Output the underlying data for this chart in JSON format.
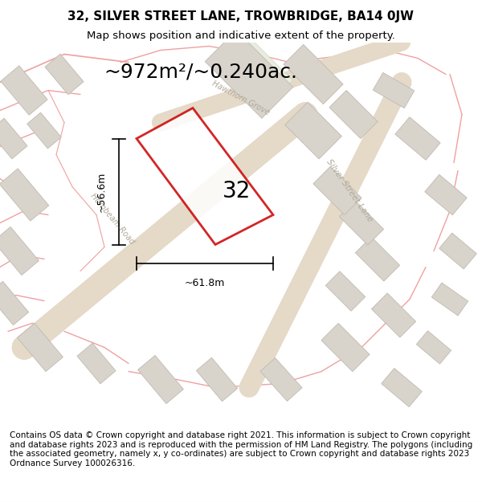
{
  "title": "32, SILVER STREET LANE, TROWBRIDGE, BA14 0JW",
  "subtitle": "Map shows position and indicative extent of the property.",
  "area_text": "~972m²/~0.240ac.",
  "width_label": "~61.8m",
  "height_label": "~56.6m",
  "plot_number": "32",
  "footer_text": "Contains OS data © Crown copyright and database right 2021. This information is subject to Crown copyright and database rights 2023 and is reproduced with the permission of HM Land Registry. The polygons (including the associated geometry, namely x, y co-ordinates) are subject to Crown copyright and database rights 2023 Ordnance Survey 100026316.",
  "bg_color": "#f5f5f0",
  "map_bg": "#f0eeea",
  "road_color": "#e8d8c8",
  "building_fill": "#d8d4cc",
  "building_stroke": "#c0bab0",
  "red_outline": "#cc0000",
  "light_red": "#f0a0a0",
  "title_fontsize": 11,
  "subtitle_fontsize": 9.5,
  "area_fontsize": 18,
  "label_fontsize": 9,
  "plot_number_fontsize": 20,
  "footer_fontsize": 7.5
}
